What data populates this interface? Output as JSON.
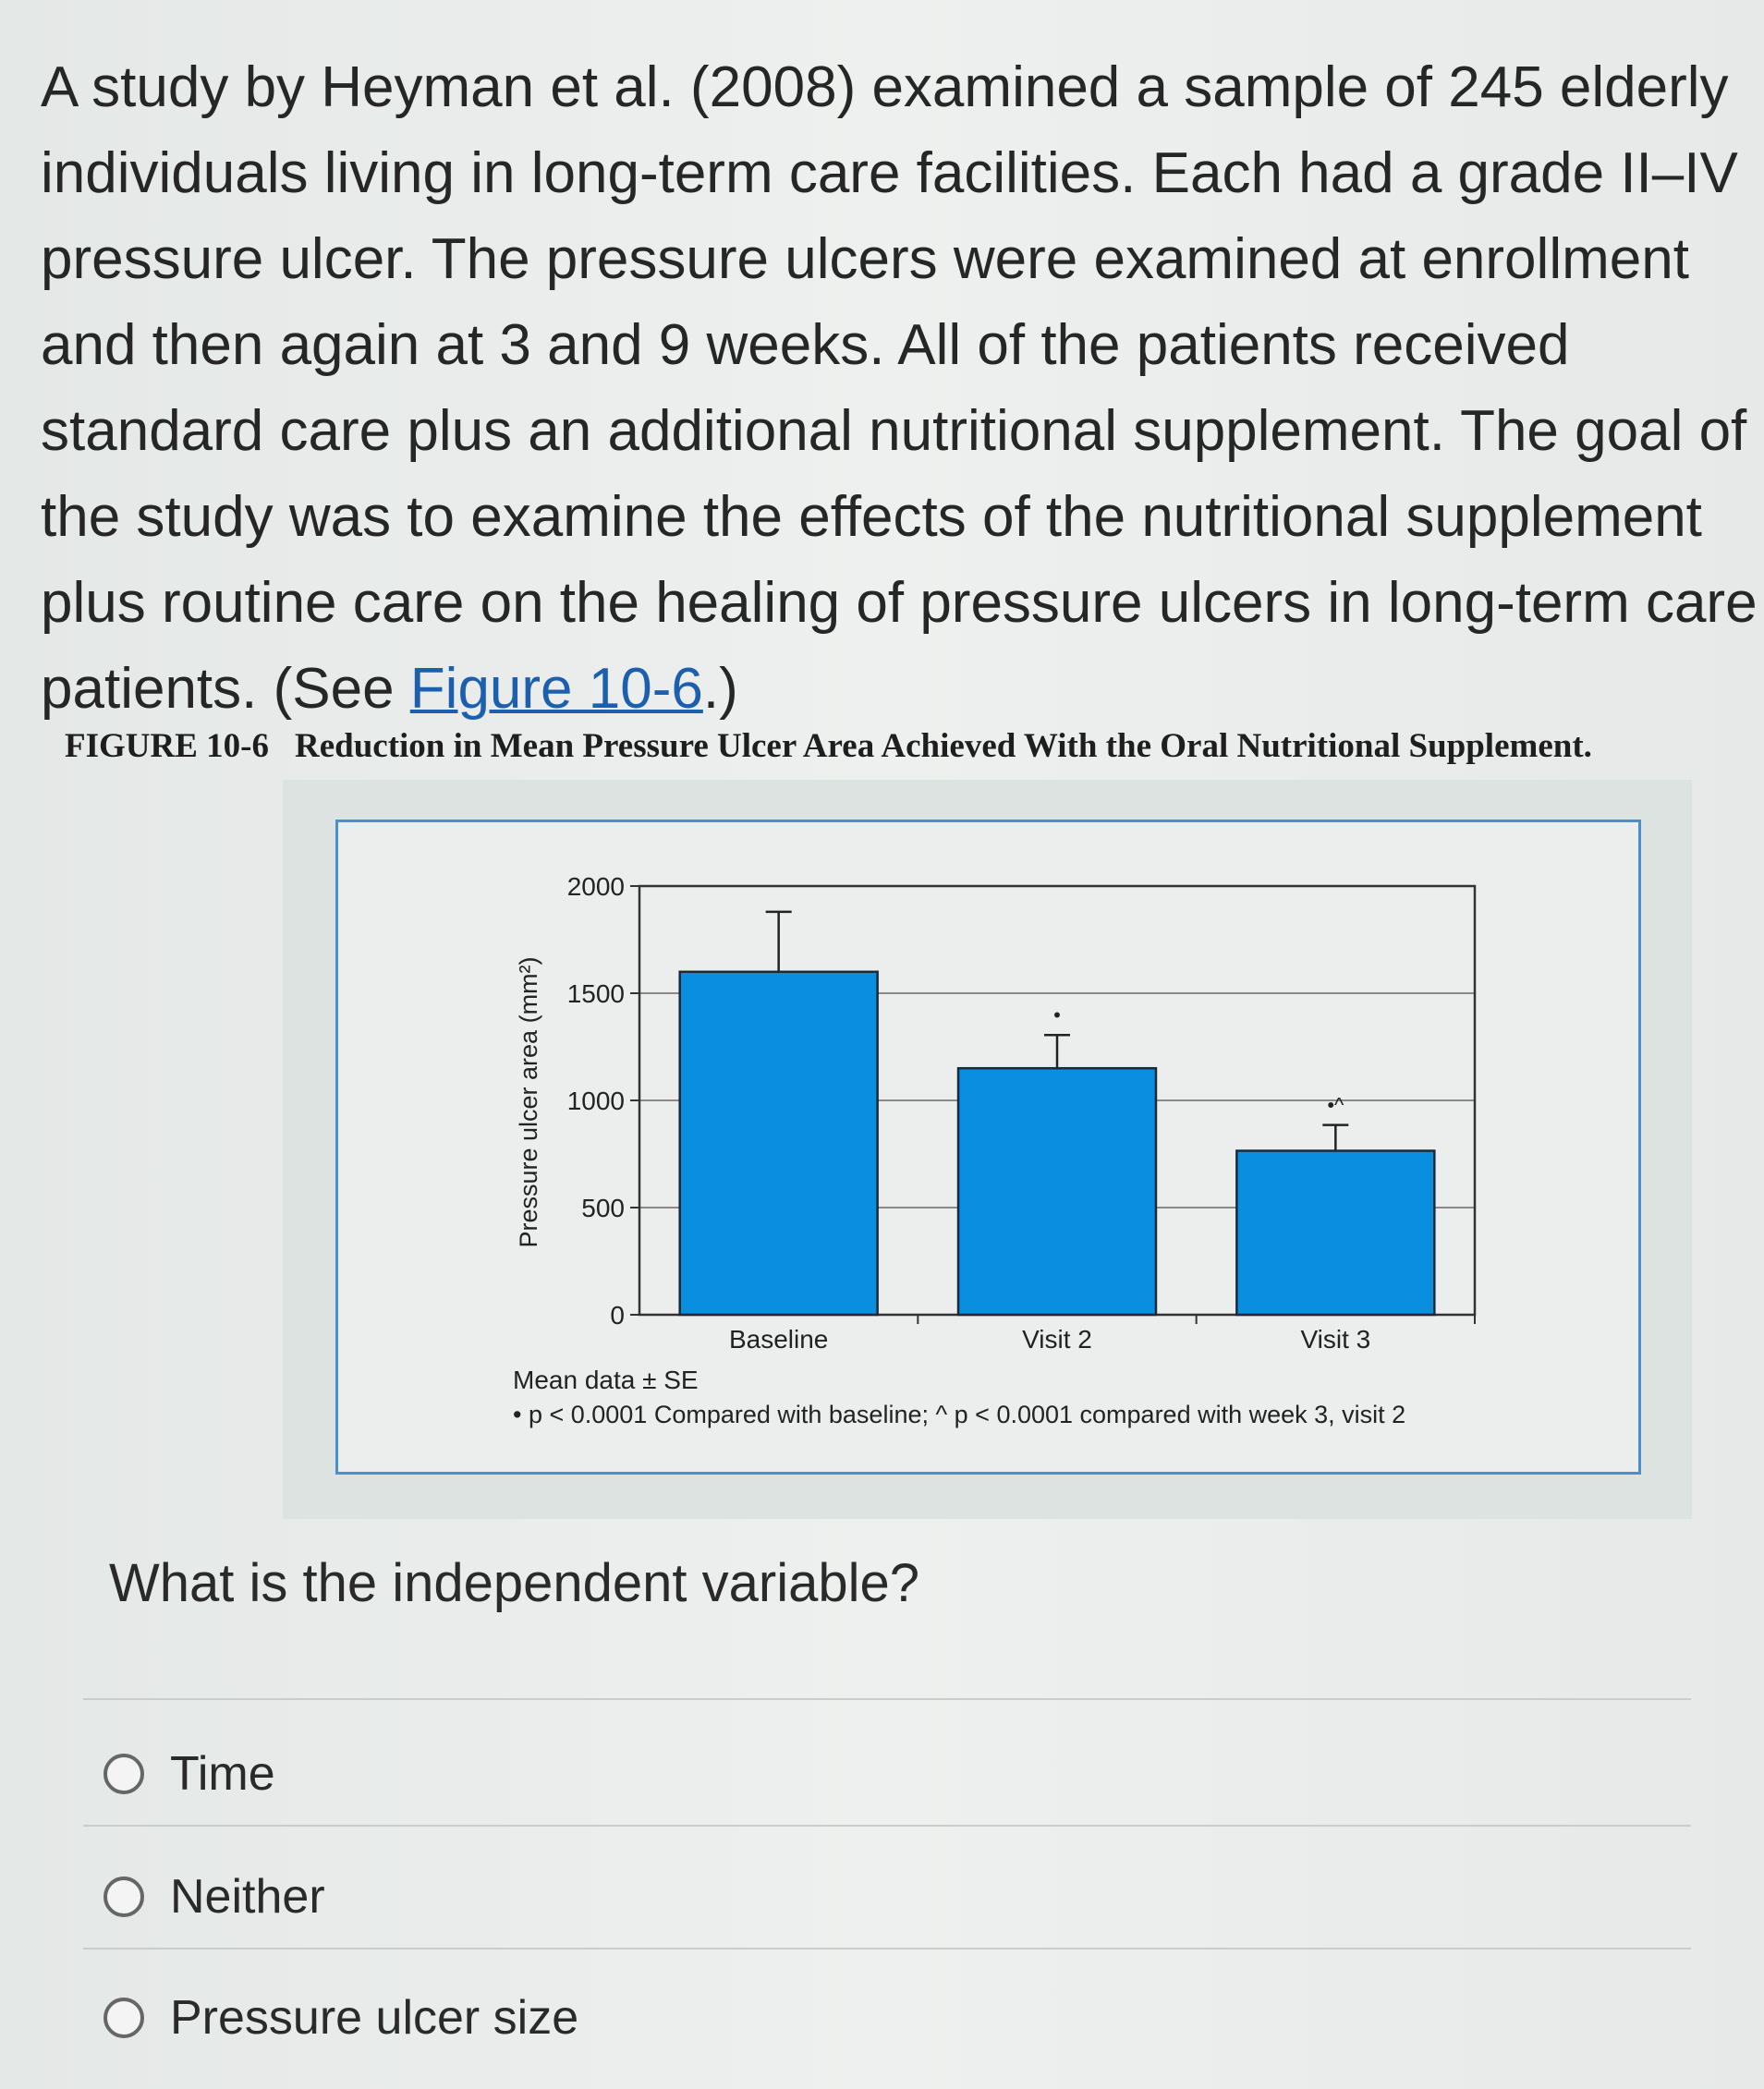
{
  "passage": {
    "lines": [
      "A study by Heyman et al. (2008) examined a sample of 245 elderly",
      "individuals living in long-term care facilities. Each had a grade II–IV",
      "pressure ulcer. The pressure ulcers were examined at enrollment",
      "and then again at 3 and 9 weeks. All of the patients received",
      "standard care plus an additional nutritional supplement. The goal of",
      "the study was to examine the effects of the nutritional supplement",
      "plus routine care on the healing of pressure ulcers in long-term care"
    ],
    "last_line_prefix": "patients. (See ",
    "figure_link": "Figure 10-6",
    "last_line_suffix": ".)"
  },
  "figure": {
    "number": "FIGURE 10-6",
    "title": "Reduction in Mean Pressure Ulcer Area Achieved With the Oral Nutritional Supplement.",
    "notes": [
      "Mean data ± SE",
      "• p < 0.0001 Compared with baseline; ^ p < 0.0001 compared with week 3, visit 2"
    ]
  },
  "chart_data": {
    "type": "bar",
    "categories": [
      "Baseline",
      "Visit 2",
      "Visit 3"
    ],
    "values": [
      1600,
      1150,
      765
    ],
    "error_upper": [
      1880,
      1305,
      885
    ],
    "annotations": [
      "",
      "•",
      "•^"
    ],
    "ylabel": "Pressure ulcer area (mm²)",
    "ylim": [
      0,
      2000
    ],
    "yticks": [
      0,
      500,
      1000,
      1500,
      2000
    ],
    "grid": true,
    "bar_color": "#0a8ee0"
  },
  "question": {
    "prompt": "What is the independent variable?",
    "options": [
      "Time",
      "Neither",
      "Pressure ulcer size"
    ]
  }
}
